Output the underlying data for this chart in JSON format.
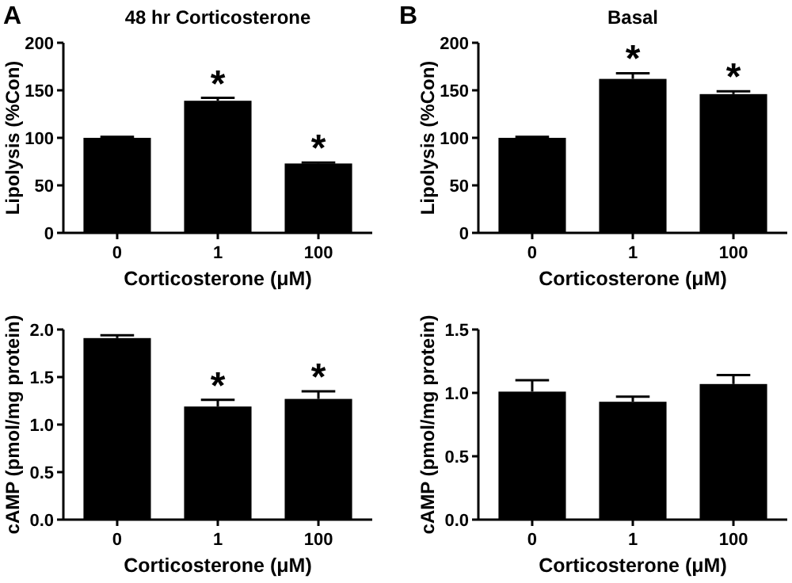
{
  "chart_data": [
    {
      "type": "bar",
      "title": "48 hr Corticosterone",
      "xlabel": "Corticosterone (μM)",
      "ylabel": "Lipolysis (%Con)",
      "categories": [
        "0",
        "1",
        "100"
      ],
      "values": [
        100,
        139,
        73
      ],
      "errors": [
        [
          100,
          101
        ],
        [
          139,
          142
        ],
        [
          73,
          74
        ]
      ],
      "color": "#000000",
      "ylim": [
        0,
        200
      ],
      "yticks": [
        0,
        50,
        100,
        150,
        200
      ],
      "annotations": [
        "A",
        {
          "text": "*",
          "x": "1",
          "y": 142
        },
        {
          "text": "*",
          "x": "100",
          "y": 74
        }
      ]
    },
    {
      "type": "bar",
      "title": "Basal",
      "xlabel": "Corticosterone (μM)",
      "ylabel": "Lipolysis (%Con)",
      "categories": [
        "0",
        "1",
        "100"
      ],
      "values": [
        100,
        162,
        146
      ],
      "errors": [
        [
          100,
          101
        ],
        [
          162,
          168
        ],
        [
          146,
          149
        ]
      ],
      "color": "#000000",
      "ylim": [
        0,
        200
      ],
      "yticks": [
        0,
        50,
        100,
        150,
        200
      ],
      "annotations": [
        "B",
        {
          "text": "*",
          "x": "1",
          "y": 168
        },
        {
          "text": "*",
          "x": "100",
          "y": 149
        }
      ]
    },
    {
      "type": "bar",
      "xlabel": "Corticosterone (μM)",
      "ylabel": "cAMP (pmol/mg protein)",
      "categories": [
        "0",
        "1",
        "100"
      ],
      "values": [
        1.91,
        1.19,
        1.27
      ],
      "errors": [
        [
          1.91,
          1.94
        ],
        [
          1.19,
          1.26
        ],
        [
          1.27,
          1.35
        ]
      ],
      "color": "#000000",
      "ylim": [
        0,
        2
      ],
      "yticks": [
        {
          "value": 0,
          "label": "0.0"
        },
        {
          "value": 0.5,
          "label": "0.5"
        },
        {
          "value": 1,
          "label": "1.0"
        },
        {
          "value": 1.5,
          "label": "1.5"
        },
        {
          "value": 2,
          "label": "2.0"
        }
      ],
      "annotations": [
        {
          "text": "*",
          "x": "1",
          "y": 1.26
        },
        {
          "text": "*",
          "x": "100",
          "y": 1.35
        }
      ]
    },
    {
      "type": "bar",
      "xlabel": "Corticosterone (μM)",
      "ylabel": "cAMP (pmol/mg protein)",
      "categories": [
        "0",
        "1",
        "100"
      ],
      "values": [
        1.01,
        0.93,
        1.07
      ],
      "errors": [
        [
          1.01,
          1.1
        ],
        [
          0.93,
          0.97
        ],
        [
          1.07,
          1.14
        ]
      ],
      "color": "#000000",
      "ylim": [
        0,
        1.5
      ],
      "yticks": [
        {
          "value": 0,
          "label": "0.0"
        },
        {
          "value": 0.5,
          "label": "0.5"
        },
        {
          "value": 1,
          "label": "1.0"
        },
        {
          "value": 1.5,
          "label": "1.5"
        }
      ]
    }
  ]
}
